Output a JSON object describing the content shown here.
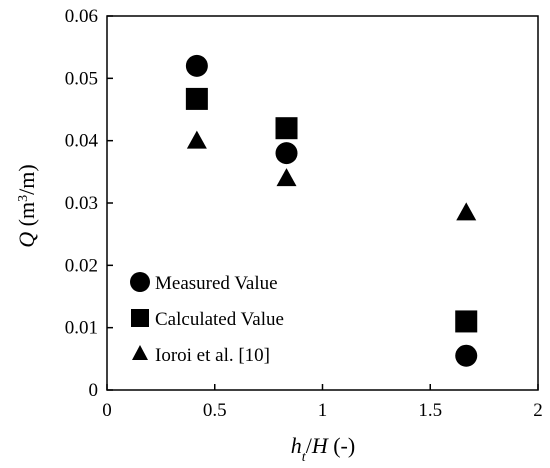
{
  "chart_data": {
    "type": "scatter",
    "xlim": [
      0,
      2
    ],
    "ylim": [
      0,
      0.06
    ],
    "x_ticks": [
      0,
      0.5,
      1,
      1.5,
      2
    ],
    "x_tick_labels": [
      "0",
      "0.5",
      "1",
      "1.5",
      "2"
    ],
    "y_ticks": [
      0,
      0.01,
      0.02,
      0.03,
      0.04,
      0.05,
      0.06
    ],
    "y_tick_labels": [
      "0",
      "0.01",
      "0.02",
      "0.03",
      "0.04",
      "0.05",
      "0.06"
    ],
    "xlabel": {
      "main": "h",
      "sub": "t",
      "rest": "/",
      "var2": "H",
      "unit": " (-)"
    },
    "ylabel": {
      "main": "Q",
      "unit_pre": " (m",
      "sup": "3",
      "unit_post": "/m)"
    },
    "grid": false,
    "legend_position": "bottom-left",
    "series": [
      {
        "name": "Measured Value",
        "marker": "circle",
        "color": "#000000",
        "x": [
          0.417,
          0.833,
          1.667
        ],
        "y": [
          0.052,
          0.038,
          0.0055
        ]
      },
      {
        "name": "Calculated Value",
        "marker": "square",
        "color": "#000000",
        "x": [
          0.417,
          0.833,
          1.667
        ],
        "y": [
          0.0467,
          0.042,
          0.011
        ]
      },
      {
        "name": "Ioroi et al. [10]",
        "marker": "triangle",
        "color": "#000000",
        "x": [
          0.417,
          0.833,
          1.667
        ],
        "y": [
          0.04,
          0.034,
          0.0285
        ]
      }
    ]
  }
}
